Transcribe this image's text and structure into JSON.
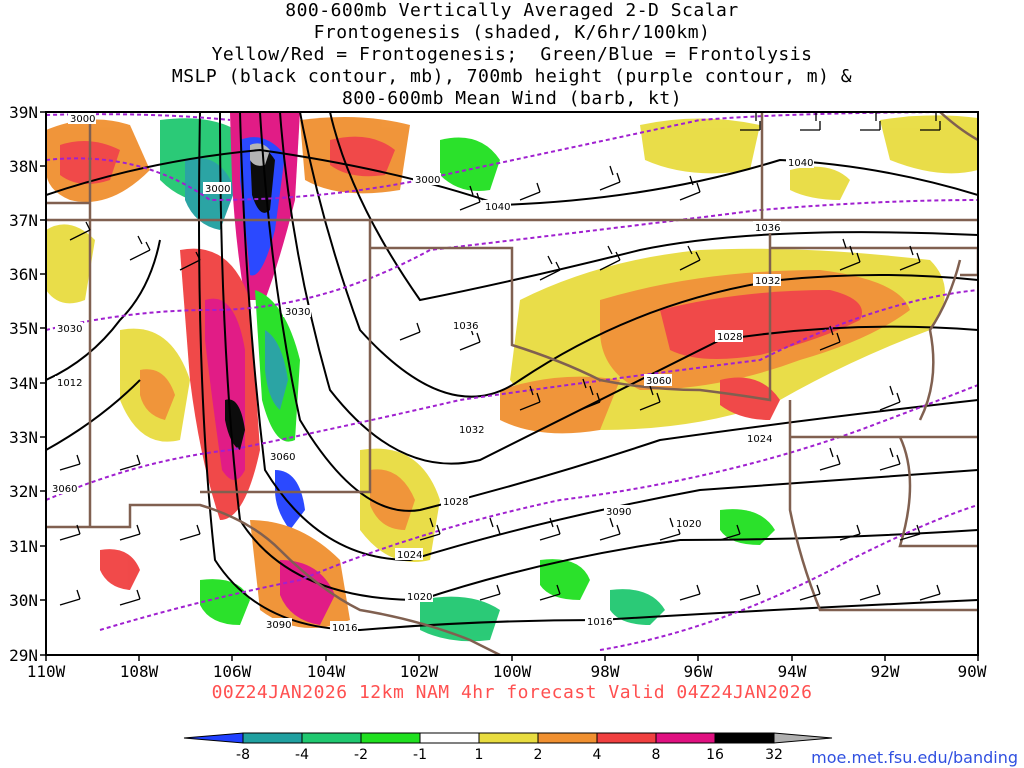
{
  "title_lines": [
    "800-600mb Vertically Averaged 2-D Scalar",
    "Frontogenesis (shaded, K/6hr/100km)",
    "Yellow/Red = Frontogenesis;  Green/Blue = Frontolysis",
    "MSLP (black contour, mb), 700mb height (purple contour, m) &",
    "800-600mb Mean Wind (barb, kt)"
  ],
  "valid_text": "00Z24JAN2026 12km NAM 4hr forecast Valid 04Z24JAN2026",
  "source_text": "moe.met.fsu.edu/banding",
  "lat_labels": [
    "39N",
    "38N",
    "37N",
    "36N",
    "35N",
    "34N",
    "33N",
    "32N",
    "31N",
    "30N",
    "29N"
  ],
  "lon_labels": [
    "110W",
    "108W",
    "106W",
    "104W",
    "102W",
    "100W",
    "98W",
    "96W",
    "94W",
    "92W",
    "90W"
  ],
  "colorbar": {
    "labels": [
      "-8",
      "-4",
      "-2",
      "-1",
      "1",
      "2",
      "4",
      "8",
      "16",
      "32"
    ],
    "colors": [
      "#2040ff",
      "#20a0a0",
      "#20c870",
      "#20e020",
      "#ffffff",
      "#e8dc40",
      "#f09030",
      "#f04040",
      "#e01080",
      "#000000",
      "#b0b0b0"
    ]
  },
  "mslp_labels": [
    "1040",
    "1040",
    "1036",
    "1036",
    "1032",
    "1032",
    "1028",
    "1028",
    "1024",
    "1024",
    "1020",
    "1020",
    "1016",
    "1016",
    "1012"
  ],
  "height_labels": [
    "3000",
    "3000",
    "3000",
    "3030",
    "3030",
    "3060",
    "3060",
    "3060",
    "3090",
    "3090"
  ],
  "shading": {
    "frontogenesis_color": "#f0a030",
    "frontolysis_color": "#30c860",
    "max_color": "#e01080"
  }
}
